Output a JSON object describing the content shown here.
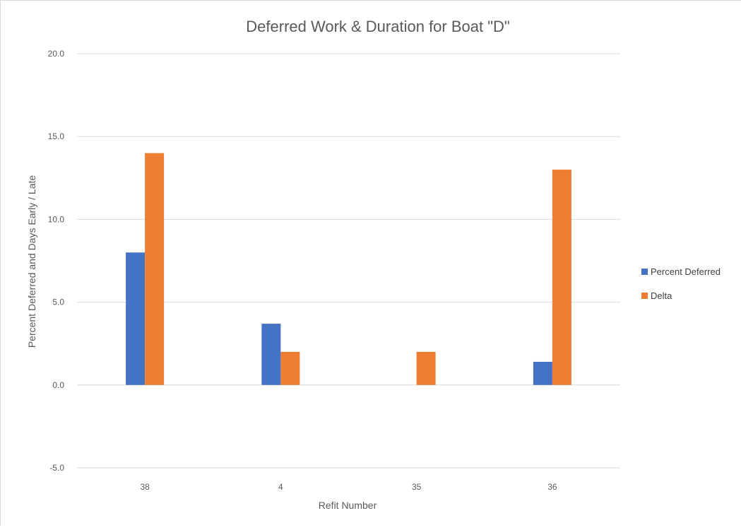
{
  "chart_data": {
    "type": "bar",
    "title": "Deferred Work & Duration for Boat \"D\"",
    "xlabel": "Refit Number",
    "ylabel": "Percent Deferred and Days Early / Late",
    "categories": [
      "38",
      "4",
      "35",
      "36"
    ],
    "series": [
      {
        "name": "Percent Deferred",
        "color": "#4472c4",
        "values": [
          8.0,
          3.7,
          0.0,
          1.4
        ]
      },
      {
        "name": "Delta",
        "color": "#ed7d31",
        "values": [
          14.0,
          2.0,
          2.0,
          13.0
        ]
      }
    ],
    "ylim": [
      -5,
      20
    ],
    "yticks": [
      -5,
      0,
      5,
      10,
      15,
      20
    ],
    "ytick_labels": [
      "-5.0",
      "0.0",
      "5.0",
      "10.0",
      "15.0",
      "20.0"
    ],
    "grid": true,
    "legend_position": "right"
  }
}
